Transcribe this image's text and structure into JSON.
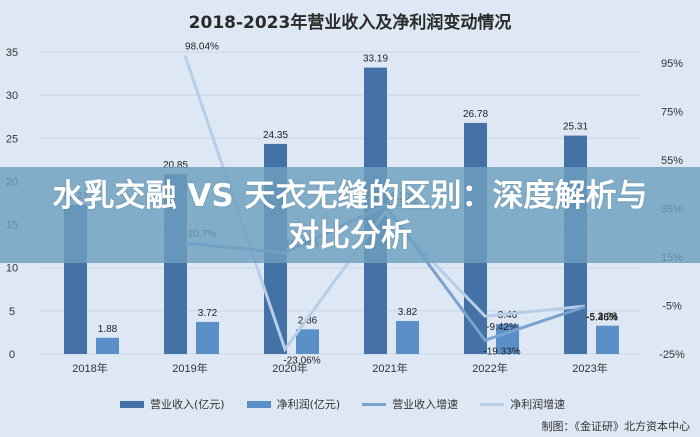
{
  "title": "2018-2023年营业收入及净利润变动情况",
  "overlay_headline": "水乳交融 VS 天衣无缝的区别：深度解析与对比分析",
  "credit": "制图：《金证研》北方资本中心",
  "watermark": "金证研",
  "colors": {
    "revenue": "#4472a6",
    "net_profit": "#5a8fc8",
    "revenue_growth": "#7aa2cf",
    "profit_growth": "#b8cde6",
    "background": "#dde8f4",
    "banner": "#6ea0be"
  },
  "legend": [
    {
      "label": "营业收入(亿元)",
      "type": "bar",
      "color": "#4472a6"
    },
    {
      "label": "净利润(亿元)",
      "type": "bar",
      "color": "#5a8fc8"
    },
    {
      "label": "营业收入增速",
      "type": "line",
      "color": "#7aa2cf"
    },
    {
      "label": "净利润增速",
      "type": "line",
      "color": "#b8cde6"
    }
  ],
  "chart_data": {
    "type": "bar+line",
    "title": "2018-2023年营业收入及净利润变动情况",
    "categories": [
      "2018年",
      "2019年",
      "2020年",
      "2021年",
      "2022年",
      "2023年"
    ],
    "series": [
      {
        "name": "营业收入(亿元)",
        "type": "bar",
        "axis": "left",
        "values": [
          17.27,
          20.85,
          24.35,
          33.19,
          26.78,
          25.31
        ],
        "labels": [
          "17.27",
          "20.85",
          "24.35",
          "33.19",
          "26.78",
          "25.31"
        ]
      },
      {
        "name": "净利润(亿元)",
        "type": "bar",
        "axis": "left",
        "values": [
          1.88,
          3.72,
          2.86,
          3.82,
          3.46,
          3.28
        ],
        "labels": [
          "1.88",
          "3.72",
          "2.86",
          "3.82",
          "3.46",
          "3.28"
        ]
      },
      {
        "name": "营业收入增速",
        "type": "line",
        "axis": "right",
        "values": [
          null,
          20.7,
          16.78,
          36.3,
          -19.33,
          -5.46
        ],
        "labels": [
          "",
          "20.7%",
          "16.78%",
          "36.30%",
          "-19.33%",
          "-5.46%"
        ]
      },
      {
        "name": "净利润增速",
        "type": "line",
        "axis": "right",
        "values": [
          null,
          98.04,
          -23.06,
          33.57,
          -9.42,
          -5.28
        ],
        "labels": [
          "",
          "98.04%",
          "-23.06%",
          "33.57%",
          "-9.42%",
          "-5.28%"
        ]
      }
    ],
    "left_axis": {
      "ticks": [
        "0",
        "5",
        "10",
        "15",
        "20",
        "25",
        "30",
        "35"
      ],
      "ylim": [
        0,
        35
      ]
    },
    "right_axis": {
      "ticks": [
        "-25%",
        "-5%",
        "15%",
        "35%",
        "55%",
        "75%",
        "95%"
      ],
      "ylim": [
        -25,
        95
      ]
    },
    "grid": true,
    "legend_position": "bottom"
  }
}
